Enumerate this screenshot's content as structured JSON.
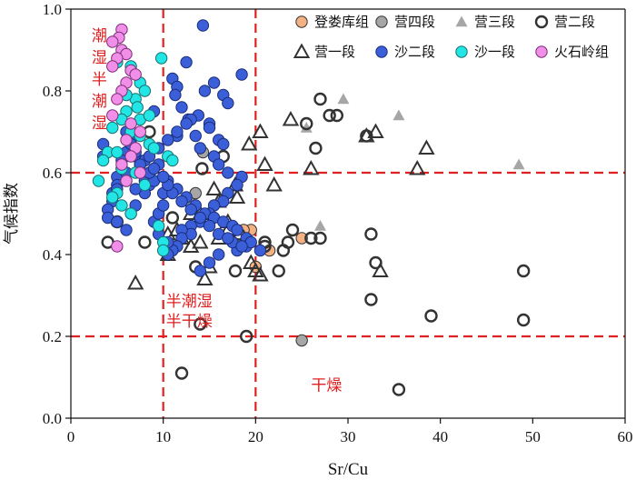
{
  "chart_data": {
    "type": "scatter",
    "xlabel": "Sr/Cu",
    "ylabel": "气候指数",
    "xlim": [
      0,
      60
    ],
    "ylim": [
      0,
      1.0
    ],
    "xticks": [
      0,
      10,
      20,
      30,
      40,
      50,
      60
    ],
    "yticks": [
      0.0,
      0.2,
      0.4,
      0.6,
      0.8,
      1.0
    ],
    "ytick_labels": [
      "0.0",
      "0.2",
      "0.4",
      "0.6",
      "0.8",
      "1.0"
    ],
    "grid": false,
    "legend_position": "top-right",
    "reference_lines": {
      "vertical": [
        10,
        20
      ],
      "horizontal": [
        0.2,
        0.6
      ],
      "color": "#e02020",
      "style": "dashed"
    },
    "annotations": [
      {
        "text": "潮湿半潮湿",
        "lines": [
          "潮",
          "湿",
          "半",
          "潮",
          "湿"
        ],
        "vertical": true,
        "x": 2,
        "y": 0.94
      },
      {
        "text": "半潮湿半干燥",
        "lines": [
          "半潮湿",
          "半干燥"
        ],
        "x": 10.3,
        "y": 0.3
      },
      {
        "text": "干燥",
        "lines": [
          "干燥"
        ],
        "x": 26,
        "y": 0.095
      }
    ],
    "series": [
      {
        "name": "登娄库组",
        "marker": "circle",
        "color": "#f4b183",
        "stroke": "#333333",
        "x": [
          19.5,
          20.0,
          21.5,
          25.0,
          18.7
        ],
        "y": [
          0.46,
          0.37,
          0.41,
          0.44,
          0.46
        ]
      },
      {
        "name": "营四段",
        "marker": "circle",
        "color": "#a6a6a6",
        "stroke": "#333333",
        "x": [
          14.3,
          25.0,
          12.8,
          13.5
        ],
        "y": [
          0.65,
          0.19,
          0.53,
          0.55
        ]
      },
      {
        "name": "营三段",
        "marker": "triangle",
        "color": "#a6a6a6",
        "stroke": "none",
        "x": [
          29.5,
          35.5,
          48.5,
          27.0,
          25.5
        ],
        "y": [
          0.78,
          0.74,
          0.62,
          0.47,
          0.71
        ]
      },
      {
        "name": "营二段",
        "marker": "circle-open",
        "color": "none",
        "stroke": "#333333",
        "x": [
          27.0,
          28.0,
          28.8,
          26.5,
          32.0,
          25.5,
          32.5,
          33.0,
          32.5,
          22.5,
          23.0,
          26.0,
          23.5,
          21.0,
          21.0,
          24.0,
          27.0,
          19.0,
          17.8,
          13.5,
          14.0,
          12.0,
          18.2,
          35.5,
          39.0,
          49.0,
          49.0,
          16.5,
          8.5,
          11.0,
          4.0,
          5.0,
          8.0,
          14.2
        ],
        "y": [
          0.78,
          0.74,
          0.74,
          0.66,
          0.69,
          0.72,
          0.45,
          0.38,
          0.29,
          0.36,
          0.41,
          0.44,
          0.43,
          0.43,
          0.42,
          0.46,
          0.44,
          0.2,
          0.36,
          0.37,
          0.23,
          0.11,
          0.45,
          0.07,
          0.25,
          0.36,
          0.24,
          0.64,
          0.7,
          0.49,
          0.43,
          0.48,
          0.43,
          0.61
        ]
      },
      {
        "name": "营一段",
        "marker": "triangle-open",
        "color": "none",
        "stroke": "#333333",
        "x": [
          23.8,
          20.5,
          19.3,
          21.0,
          22.0,
          26.0,
          32.0,
          33.0,
          37.5,
          38.5,
          17.8,
          18.0,
          17.0,
          16.0,
          14.0,
          13.0,
          11.5,
          12.0,
          13.0,
          14.0,
          16.0,
          17.0,
          15.0,
          7.0,
          33.5,
          19.5,
          20.5,
          14.5,
          10.5,
          10.5,
          20.0,
          15.5
        ],
        "y": [
          0.73,
          0.7,
          0.67,
          0.62,
          0.57,
          0.61,
          0.69,
          0.7,
          0.61,
          0.66,
          0.57,
          0.54,
          0.48,
          0.53,
          0.5,
          0.5,
          0.46,
          0.44,
          0.42,
          0.43,
          0.44,
          0.46,
          0.37,
          0.33,
          0.36,
          0.38,
          0.35,
          0.34,
          0.4,
          0.45,
          0.36,
          0.56
        ]
      },
      {
        "name": "沙二段",
        "marker": "circle",
        "color": "#3a5fd9",
        "stroke": "#1c2e7a",
        "x": [
          14.3,
          9.0,
          11.0,
          11.5,
          11.3,
          12.5,
          12.7,
          11.5,
          13.8,
          15.0,
          16.0,
          16.5,
          14.0,
          15.5,
          16.0,
          17.0,
          18.5,
          18.0,
          17.0,
          16.5,
          15.5,
          15.0,
          14.0,
          13.0,
          13.0,
          12.0,
          12.0,
          11.5,
          11.0,
          10.5,
          10.5,
          9.5,
          9.0,
          9.5,
          10.0,
          10.0,
          8.5,
          8.0,
          7.5,
          7.5,
          7.0,
          6.5,
          6.5,
          6.0,
          6.0,
          5.5,
          5.5,
          5.0,
          5.0,
          4.5,
          4.5,
          4.0,
          4.0,
          3.5,
          3.5,
          7.0,
          8.0,
          9.0,
          6.5,
          5.0,
          6.0,
          7.0,
          8.5,
          9.5,
          10.5,
          11.5,
          12.5,
          13.5,
          14.5,
          15.5,
          16.5,
          17.5,
          18.0,
          19.0,
          19.0,
          18.0,
          17.5,
          16.0,
          15.0,
          14.0,
          13.0,
          12.0,
          11.0,
          10.5,
          10.0,
          9.0,
          8.0,
          7.0,
          6.5,
          12.0,
          13.0,
          14.5,
          15.5,
          16.5,
          18.5,
          17.0,
          15.0,
          13.5,
          12.5,
          11.5,
          10.5,
          9.5,
          8.5,
          7.5,
          6.0,
          5.0,
          19.5,
          20.5,
          18.5,
          17.0,
          16.0,
          15.0,
          14.0
        ],
        "y": [
          0.96,
          0.75,
          0.83,
          0.81,
          0.79,
          0.87,
          0.73,
          0.69,
          0.74,
          0.72,
          0.68,
          0.67,
          0.66,
          0.64,
          0.62,
          0.6,
          0.59,
          0.57,
          0.55,
          0.53,
          0.52,
          0.5,
          0.48,
          0.47,
          0.45,
          0.46,
          0.44,
          0.42,
          0.41,
          0.4,
          0.43,
          0.45,
          0.48,
          0.5,
          0.52,
          0.55,
          0.57,
          0.58,
          0.6,
          0.62,
          0.64,
          0.66,
          0.68,
          0.7,
          0.65,
          0.63,
          0.61,
          0.59,
          0.57,
          0.55,
          0.53,
          0.51,
          0.49,
          0.67,
          0.64,
          0.52,
          0.55,
          0.58,
          0.5,
          0.48,
          0.46,
          0.56,
          0.6,
          0.62,
          0.58,
          0.56,
          0.54,
          0.52,
          0.5,
          0.49,
          0.48,
          0.47,
          0.46,
          0.44,
          0.42,
          0.41,
          0.43,
          0.45,
          0.47,
          0.49,
          0.51,
          0.53,
          0.55,
          0.57,
          0.59,
          0.61,
          0.63,
          0.65,
          0.67,
          0.76,
          0.73,
          0.8,
          0.82,
          0.79,
          0.84,
          0.77,
          0.71,
          0.69,
          0.72,
          0.7,
          0.68,
          0.66,
          0.64,
          0.62,
          0.6,
          0.56,
          0.43,
          0.41,
          0.42,
          0.44,
          0.4,
          0.38,
          0.36
        ]
      },
      {
        "name": "沙一段",
        "marker": "circle",
        "color": "#22e5e5",
        "stroke": "#1a6f6f",
        "x": [
          9.8,
          5.0,
          6.5,
          7.5,
          8.0,
          7.0,
          7.2,
          6.0,
          5.5,
          4.5,
          6.5,
          7.5,
          8.5,
          9.0,
          4.0,
          3.5,
          5.5,
          10.5,
          11.0,
          7.0,
          6.0,
          8.0,
          5.0,
          4.5,
          5.5,
          6.5,
          9.5,
          10.0,
          3.0,
          7.5,
          8.5,
          6.0,
          5.0,
          10.0
        ],
        "y": [
          0.88,
          0.87,
          0.86,
          0.82,
          0.8,
          0.78,
          0.76,
          0.75,
          0.73,
          0.71,
          0.7,
          0.69,
          0.67,
          0.66,
          0.65,
          0.63,
          0.61,
          0.64,
          0.63,
          0.6,
          0.58,
          0.57,
          0.55,
          0.54,
          0.52,
          0.5,
          0.47,
          0.43,
          0.58,
          0.73,
          0.74,
          0.79,
          0.65,
          0.41
        ]
      },
      {
        "name": "火石岭组",
        "marker": "circle",
        "color": "#f08ee8",
        "stroke": "#7a2f78",
        "x": [
          5.5,
          5.2,
          4.5,
          5.5,
          6.0,
          5.0,
          4.5,
          6.5,
          7.0,
          6.0,
          5.5,
          5.0,
          4.5,
          6.5,
          7.5,
          6.0,
          7.0,
          6.5,
          5.5,
          7.5,
          6.0,
          5.0
        ],
        "y": [
          0.95,
          0.93,
          0.92,
          0.9,
          0.89,
          0.88,
          0.86,
          0.85,
          0.84,
          0.82,
          0.8,
          0.78,
          0.74,
          0.72,
          0.7,
          0.68,
          0.66,
          0.64,
          0.62,
          0.6,
          0.58,
          0.42
        ]
      }
    ]
  }
}
